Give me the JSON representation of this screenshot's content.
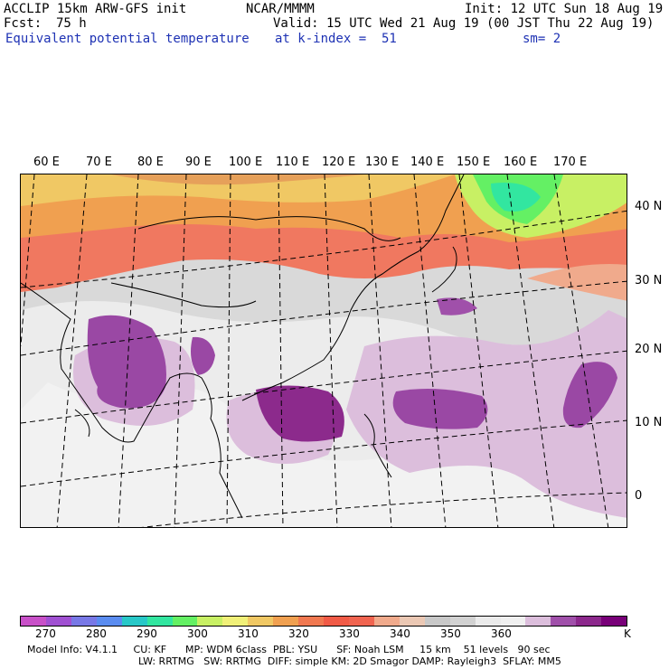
{
  "header": {
    "model": "ACCLIP 15km ARW-GFS init",
    "org": "NCAR/MMMM",
    "init": "Init: 12 UTC Sun 18 Aug 19",
    "fcst_label": "Fcst:",
    "fcst_value": "75 h",
    "valid": "Valid: 15 UTC Wed 21 Aug 19 (00 JST Thu 22 Aug 19)",
    "field": "Equivalent potential temperature",
    "level": "at k-index =  51",
    "smoothing": "sm= 2"
  },
  "lon_labels": [
    "60 E",
    "70 E",
    "80 E",
    "90 E",
    "100 E",
    "110 E",
    "120 E",
    "130 E",
    "140 E",
    "150 E",
    "160 E",
    "170 E"
  ],
  "lat_labels": [
    "40 N",
    "30 N",
    "20 N",
    "10 N",
    "0"
  ],
  "colorbar": {
    "colors": [
      "#c850c8",
      "#a050d2",
      "#7878e6",
      "#5a8cf0",
      "#28c8c8",
      "#32e6a0",
      "#64f064",
      "#c8f064",
      "#f0f078",
      "#f0c864",
      "#f0a050",
      "#f07850",
      "#f05a46",
      "#f06450",
      "#f0aa8c",
      "#ebc8b4",
      "#c8c8c8",
      "#d2d2d2",
      "#ebebeb",
      "#f0f0f0",
      "#dcbedc",
      "#a050aa",
      "#8c288c",
      "#780078"
    ],
    "tick_labels": [
      "270",
      "280",
      "290",
      "300",
      "310",
      "320",
      "330",
      "340",
      "350",
      "360"
    ],
    "unit": "K"
  },
  "footer": {
    "line1": "Model Info: V4.1.1     CU: KF      MP: WDM 6class  PBL: YSU      SF: Noah LSM     15 km    51 levels   90 sec",
    "line2": "LW: RRTMG   SW: RRTMG  DIFF: simple KM: 2D Smagor DAMP: Rayleigh3  SFLAY: MM5"
  }
}
